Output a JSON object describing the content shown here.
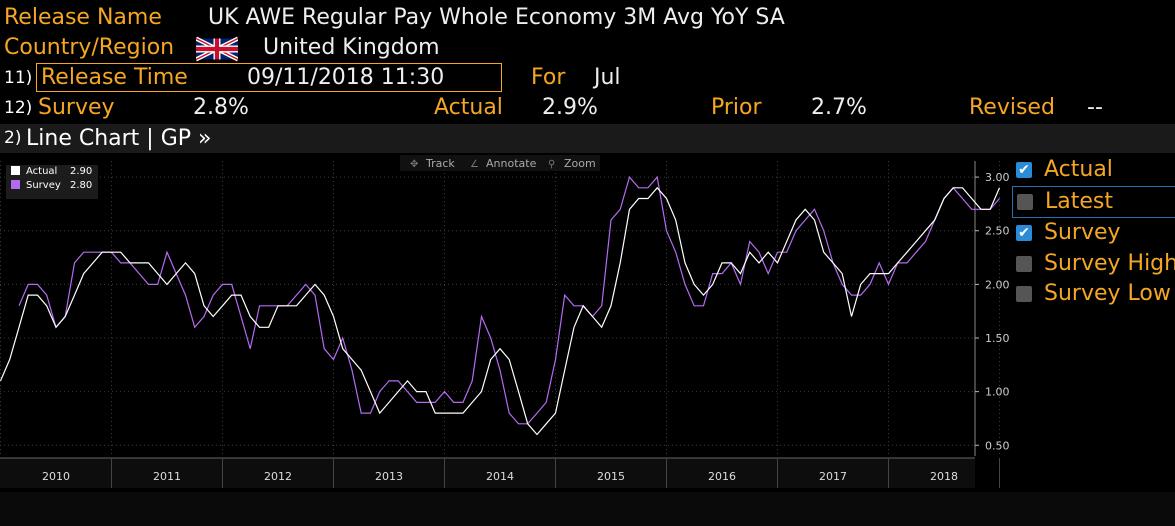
{
  "header": {
    "release_name_label": "Release Name",
    "release_name_value": "UK AWE Regular Pay Whole Economy 3M Avg YoY SA",
    "country_label": "Country/Region",
    "country_value": "United Kingdom",
    "row3_num": "11)",
    "release_time_label": "Release Time",
    "release_time_value": "09/11/2018 11:30",
    "for_label": "For",
    "for_value": "Jul",
    "row4_num": "12)",
    "survey_label": "Survey",
    "survey_value": "2.8%",
    "actual_label": "Actual",
    "actual_value": "2.9%",
    "prior_label": "Prior",
    "prior_value": "2.7%",
    "revised_label": "Revised",
    "revised_value": "--"
  },
  "chart_bar": {
    "num": "2)",
    "title": "Line Chart | GP »"
  },
  "toolbar": {
    "track": "Track",
    "annotate": "Annotate",
    "zoom": "Zoom"
  },
  "legend_items": [
    {
      "label": "Actual",
      "checked": true
    },
    {
      "label": "Latest",
      "checked": false
    },
    {
      "label": "Survey",
      "checked": true
    },
    {
      "label": "Survey High",
      "checked": false
    },
    {
      "label": "Survey Low",
      "checked": false
    }
  ],
  "colors": {
    "actual": "#ffffff",
    "survey": "#b36cf0",
    "accent": "#f5a623"
  },
  "chart_data": {
    "type": "line",
    "inset_legend": [
      {
        "name": "Actual",
        "value": "2.90"
      },
      {
        "name": "Survey",
        "value": "2.80"
      }
    ],
    "x_ticks": [
      "2010",
      "2011",
      "2012",
      "2013",
      "2014",
      "2015",
      "2016",
      "2017",
      "2018"
    ],
    "y_ticks": [
      "3.00",
      "2.50",
      "2.00",
      "1.50",
      "1.00",
      "0.50"
    ],
    "ylim": [
      0.4,
      3.15
    ],
    "x_start": "2009.5",
    "x_step_years": 0.08333,
    "series": [
      {
        "name": "Actual",
        "values": [
          1.1,
          1.3,
          1.6,
          1.9,
          1.9,
          1.8,
          1.6,
          1.7,
          1.9,
          2.1,
          2.2,
          2.3,
          2.3,
          2.3,
          2.2,
          2.2,
          2.2,
          2.1,
          2.0,
          2.1,
          2.2,
          2.1,
          1.8,
          1.7,
          1.8,
          1.9,
          1.9,
          1.7,
          1.6,
          1.6,
          1.8,
          1.8,
          1.8,
          1.9,
          2.0,
          1.9,
          1.7,
          1.4,
          1.3,
          1.2,
          1.0,
          0.8,
          0.9,
          1.0,
          1.1,
          1.0,
          1.0,
          0.8,
          0.8,
          0.8,
          0.8,
          0.9,
          1.0,
          1.3,
          1.4,
          1.3,
          1.0,
          0.7,
          0.6,
          0.7,
          0.8,
          1.2,
          1.6,
          1.8,
          1.7,
          1.6,
          1.8,
          2.2,
          2.7,
          2.8,
          2.8,
          2.9,
          2.8,
          2.6,
          2.2,
          2.0,
          1.9,
          2.0,
          2.2,
          2.2,
          2.1,
          2.3,
          2.2,
          2.3,
          2.2,
          2.4,
          2.6,
          2.7,
          2.6,
          2.3,
          2.2,
          2.1,
          1.7,
          2.0,
          2.1,
          2.1,
          2.1,
          2.2,
          2.3,
          2.4,
          2.5,
          2.6,
          2.8,
          2.9,
          2.9,
          2.8,
          2.7,
          2.7,
          2.9
        ]
      },
      {
        "name": "Survey",
        "values": [
          null,
          null,
          1.8,
          2.0,
          2.0,
          1.9,
          1.6,
          1.7,
          2.2,
          2.3,
          2.3,
          2.3,
          2.3,
          2.2,
          2.2,
          2.1,
          2.0,
          2.0,
          2.3,
          2.1,
          1.9,
          1.6,
          1.7,
          1.9,
          2.0,
          2.0,
          1.7,
          1.4,
          1.8,
          1.8,
          1.8,
          1.8,
          1.9,
          2.0,
          1.9,
          1.4,
          1.3,
          1.5,
          1.2,
          0.8,
          0.8,
          1.0,
          1.1,
          1.1,
          1.0,
          0.9,
          0.9,
          0.9,
          1.0,
          0.9,
          0.9,
          1.1,
          1.7,
          1.5,
          1.2,
          0.8,
          0.7,
          0.7,
          0.8,
          0.9,
          1.3,
          1.9,
          1.8,
          1.8,
          1.7,
          1.8,
          2.6,
          2.7,
          3.0,
          2.9,
          2.9,
          3.0,
          2.5,
          2.3,
          2.0,
          1.8,
          1.8,
          2.1,
          2.1,
          2.2,
          2.0,
          2.4,
          2.3,
          2.1,
          2.3,
          2.3,
          2.5,
          2.6,
          2.7,
          2.5,
          2.2,
          2.0,
          1.9,
          1.9,
          2.0,
          2.2,
          2.0,
          2.2,
          2.2,
          2.3,
          2.4,
          2.6,
          2.8,
          2.9,
          2.8,
          2.7,
          2.7,
          2.7,
          2.8
        ]
      }
    ]
  }
}
